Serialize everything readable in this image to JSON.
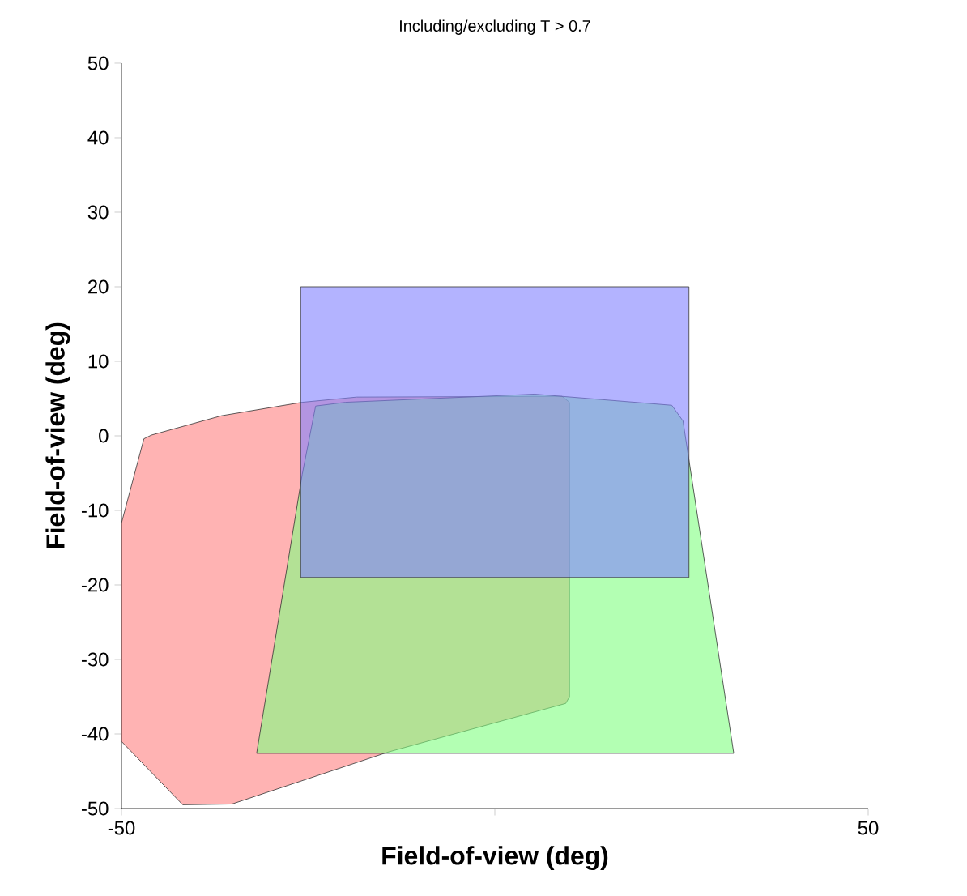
{
  "chart_data": {
    "type": "area",
    "title": "Including/excluding T > 0.7",
    "xlabel": "Field-of-view (deg)",
    "ylabel": "Field-of-view (deg)",
    "xlim": [
      -50,
      50
    ],
    "ylim": [
      -50,
      50
    ],
    "xticks": [
      -50,
      {
        "value": 0,
        "label": null
      },
      50
    ],
    "yticks": [
      -50,
      -40,
      -30,
      -20,
      -10,
      0,
      10,
      20,
      30,
      40,
      50
    ],
    "series": [
      {
        "color": "#ff8080",
        "x": [
          -47,
          -46,
          -36.6,
          -25.8,
          -18.5,
          9,
          10,
          10,
          9.5,
          -14.2,
          -35.2,
          -41.8,
          -50,
          -50
        ],
        "values": [
          -0.4,
          0.1,
          2.7,
          4.5,
          5.2,
          5.3,
          4.5,
          -35,
          -35.9,
          -42.4,
          -49.4,
          -49.5,
          -41,
          -11.7
        ]
      },
      {
        "color": "#80ff80",
        "x": [
          -31.9,
          -25.8,
          -24,
          -20,
          5.3,
          23.7,
          25.2,
          32,
          32
        ],
        "values": [
          -42.6,
          -5.2,
          4,
          4.5,
          5.6,
          4.1,
          2,
          -42.6,
          -42.6
        ]
      },
      {
        "color": "#8080ff",
        "x": [
          -26,
          -26,
          26,
          26
        ],
        "values": [
          -19,
          20,
          20,
          -19
        ]
      }
    ]
  }
}
